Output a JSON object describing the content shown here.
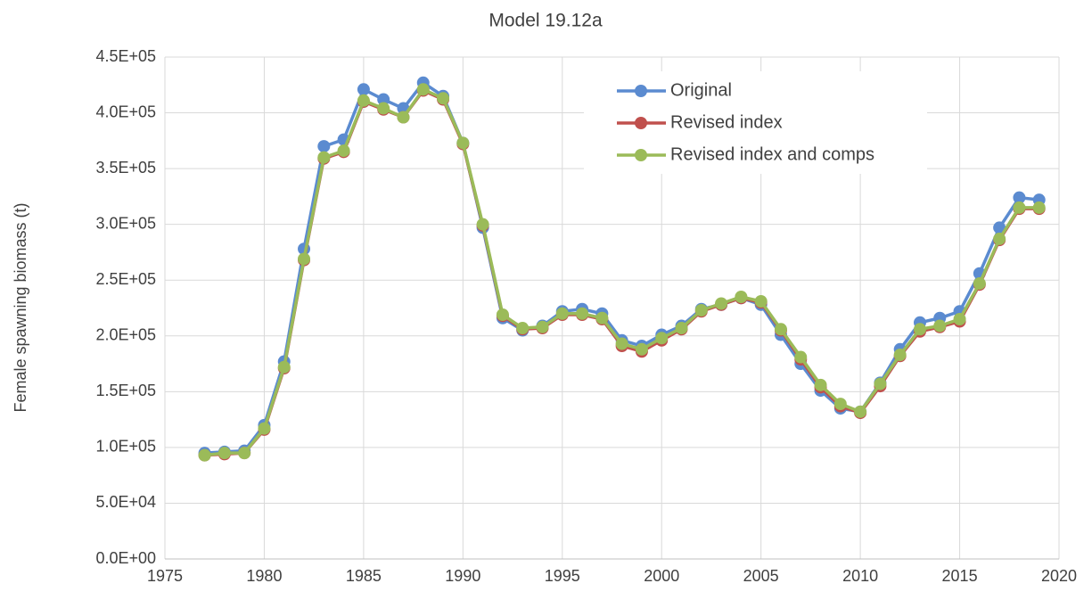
{
  "chart_data": {
    "type": "line",
    "title": "Model 19.12a",
    "y_label": "Female spawning biomass (t)",
    "x": [
      1977,
      1978,
      1979,
      1980,
      1981,
      1982,
      1983,
      1984,
      1985,
      1986,
      1987,
      1988,
      1989,
      1990,
      1991,
      1992,
      1993,
      1994,
      1995,
      1996,
      1997,
      1998,
      1999,
      2000,
      2001,
      2002,
      2003,
      2004,
      2005,
      2006,
      2007,
      2008,
      2009,
      2010,
      2011,
      2012,
      2013,
      2014,
      2015,
      2016,
      2017,
      2018,
      2019
    ],
    "series": [
      {
        "name": "Original",
        "color": "#5b8bd0",
        "values": [
          95000,
          96000,
          97000,
          120000,
          177000,
          278000,
          370000,
          376000,
          421000,
          412000,
          404000,
          427000,
          415000,
          373000,
          297000,
          216000,
          205000,
          209000,
          222000,
          224000,
          220000,
          196000,
          191000,
          201000,
          209000,
          224000,
          228000,
          234000,
          228000,
          201000,
          175000,
          151000,
          135000,
          132000,
          158000,
          188000,
          212000,
          216000,
          222000,
          256000,
          297000,
          324000,
          322000
        ]
      },
      {
        "name": "Revised index",
        "color": "#c0504d",
        "values": [
          93000,
          94000,
          95000,
          116000,
          171000,
          268000,
          359000,
          365000,
          410000,
          403000,
          396000,
          420000,
          412000,
          372000,
          299000,
          218000,
          206000,
          207000,
          219000,
          219000,
          215000,
          191000,
          186000,
          196000,
          206000,
          222000,
          228000,
          234000,
          230000,
          205000,
          179000,
          154000,
          137000,
          131000,
          155000,
          182000,
          204000,
          208000,
          213000,
          246000,
          286000,
          314000,
          314000
        ]
      },
      {
        "name": "Revised index and comps",
        "color": "#9bbb59",
        "values": [
          93000,
          95000,
          95000,
          117000,
          172000,
          269000,
          360000,
          366000,
          411000,
          404000,
          396000,
          421000,
          413000,
          373000,
          300000,
          219000,
          207000,
          208000,
          220000,
          220000,
          216000,
          193000,
          188000,
          198000,
          207000,
          223000,
          229000,
          235000,
          231000,
          206000,
          181000,
          156000,
          139000,
          132000,
          157000,
          183000,
          206000,
          209000,
          215000,
          247000,
          287000,
          315000,
          315000
        ]
      }
    ],
    "xlim": [
      1975,
      2020
    ],
    "xticks": [
      1975,
      1980,
      1985,
      1990,
      1995,
      2000,
      2005,
      2010,
      2015,
      2020
    ],
    "ylim": [
      0,
      450000
    ],
    "yticks": [
      {
        "value": 0,
        "label": "0.0E+00"
      },
      {
        "value": 50000,
        "label": "5.0E+04"
      },
      {
        "value": 100000,
        "label": "1.0E+05"
      },
      {
        "value": 150000,
        "label": "1.5E+05"
      },
      {
        "value": 200000,
        "label": "2.0E+05"
      },
      {
        "value": 250000,
        "label": "2.5E+05"
      },
      {
        "value": 300000,
        "label": "3.0E+05"
      },
      {
        "value": 350000,
        "label": "3.5E+05"
      },
      {
        "value": 400000,
        "label": "4.0E+05"
      },
      {
        "value": 450000,
        "label": "4.5E+05"
      }
    ],
    "grid": true,
    "legend": "upper right"
  }
}
